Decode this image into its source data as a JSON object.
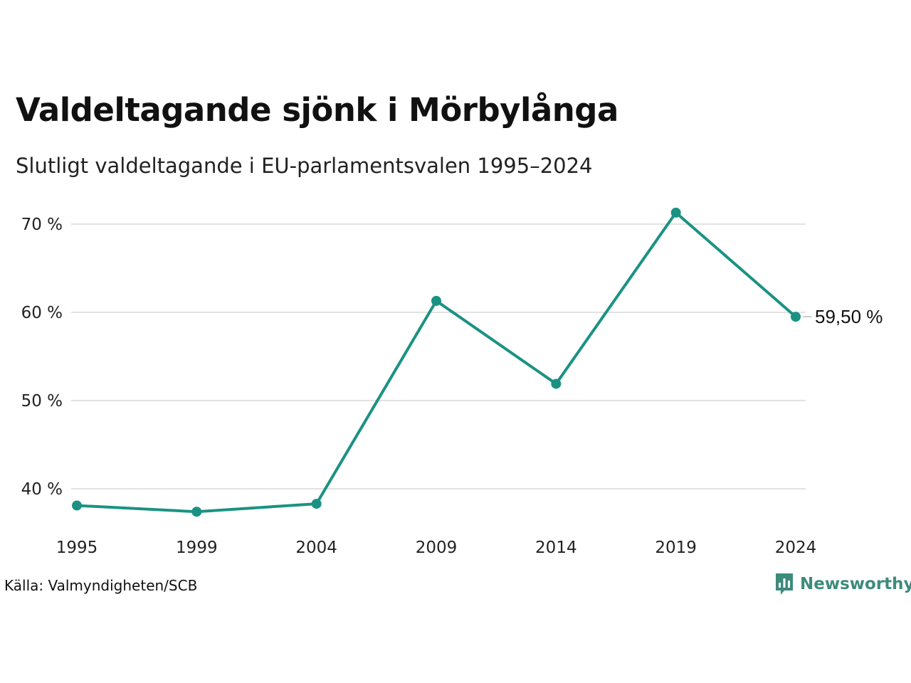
{
  "chart_data": {
    "type": "line",
    "title": "Valdeltagande sjönk i Mörbylånga",
    "subtitle": "Slutligt valdeltagande i EU-parlamentsvalen 1995–2024",
    "categories": [
      "1995",
      "1999",
      "2004",
      "2009",
      "2014",
      "2019",
      "2024"
    ],
    "series": [
      {
        "values": [
          38.1,
          37.4,
          38.3,
          61.3,
          51.9,
          71.3,
          59.5
        ],
        "color": "#1a9283"
      }
    ],
    "yticks": [
      {
        "value": 40,
        "label": "40 %"
      },
      {
        "value": 50,
        "label": "50 %"
      },
      {
        "value": 60,
        "label": "60 %"
      },
      {
        "value": 70,
        "label": "70 %"
      }
    ],
    "ylim": [
      35,
      73
    ],
    "grid": true,
    "end_label": "59,50 %",
    "gridline_color": "#e2e2e2"
  },
  "footer": {
    "source": "Källa: Valmyndigheten/SCB",
    "brand": "Newsworthy",
    "brand_icon": "newsworthy-logo-icon",
    "brand_color": "#3d8b7d"
  }
}
